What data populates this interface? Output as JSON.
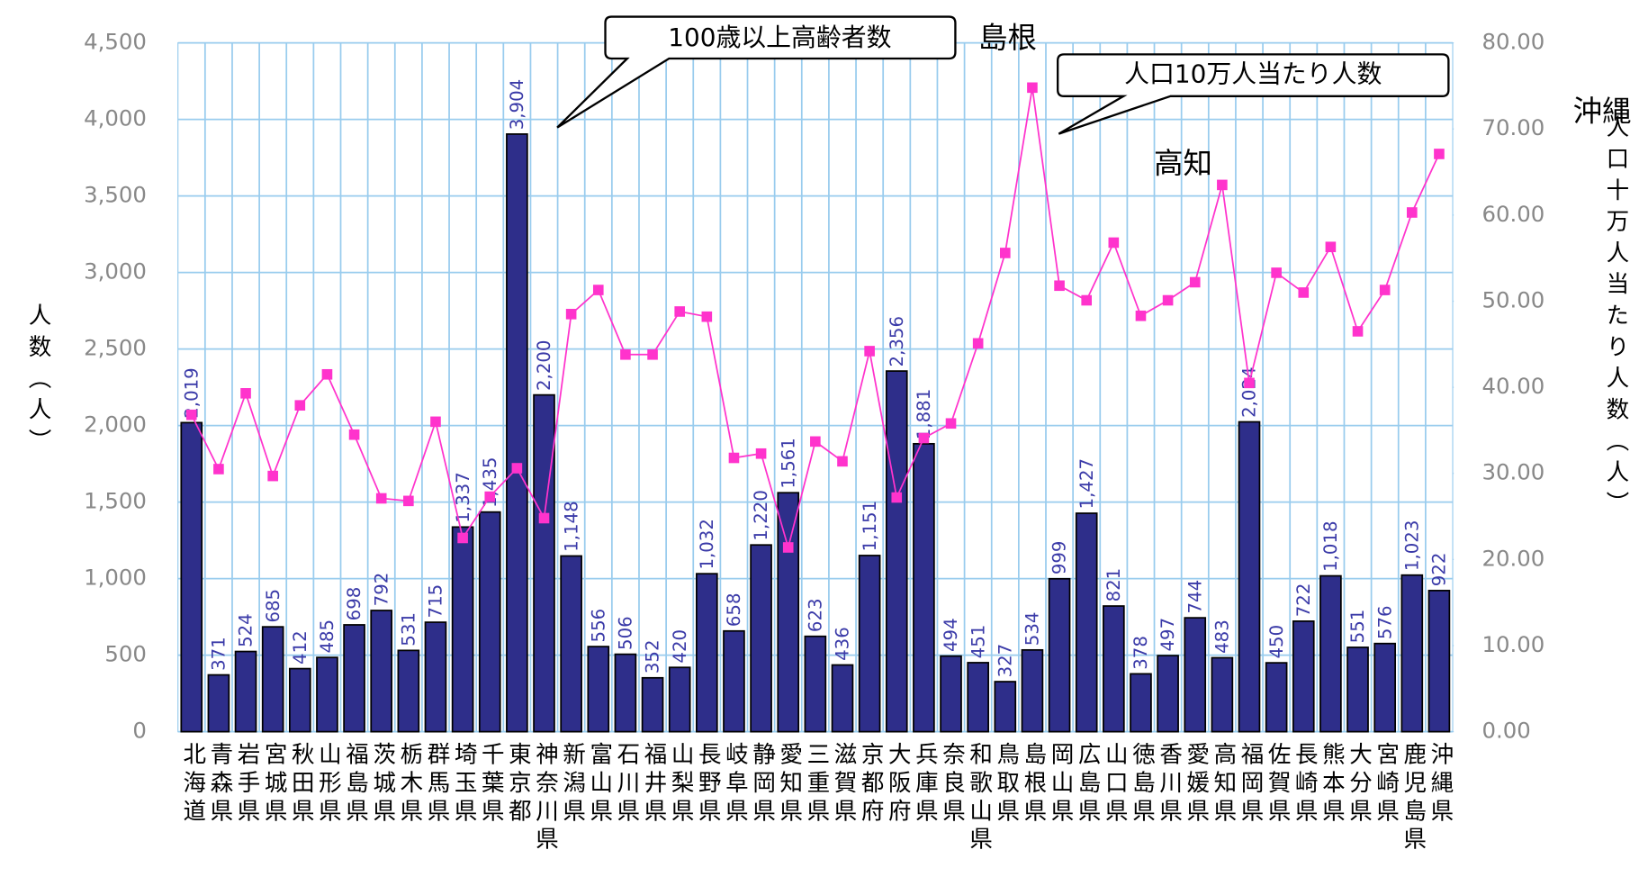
{
  "chart_data": {
    "type": "bar_line",
    "categories": [
      "北海道",
      "青森県",
      "岩手県",
      "宮城県",
      "秋田県",
      "山形県",
      "福島県",
      "茨城県",
      "栃木県",
      "群馬県",
      "埼玉県",
      "千葉県",
      "東京都",
      "神奈川県",
      "新潟県",
      "富山県",
      "石川県",
      "福井県",
      "山梨県",
      "長野県",
      "岐阜県",
      "静岡県",
      "愛知県",
      "三重県",
      "滋賀県",
      "京都府",
      "大阪府",
      "兵庫県",
      "奈良県",
      "和歌山県",
      "鳥取県",
      "島根県",
      "岡山県",
      "広島県",
      "山口県",
      "徳島県",
      "香川県",
      "愛媛県",
      "高知県",
      "福岡県",
      "佐賀県",
      "長崎県",
      "熊本県",
      "大分県",
      "宮崎県",
      "鹿児島県",
      "沖縄県"
    ],
    "series": [
      {
        "name": "100歳以上高齢者数",
        "color": "#2e2e8a",
        "type": "bar",
        "values": [
          2019,
          371,
          524,
          685,
          412,
          485,
          698,
          792,
          531,
          715,
          1337,
          1435,
          3904,
          2200,
          1148,
          556,
          506,
          352,
          420,
          1032,
          658,
          1220,
          1561,
          623,
          436,
          1151,
          2356,
          1881,
          494,
          451,
          327,
          534,
          999,
          1427,
          821,
          378,
          497,
          744,
          483,
          2024,
          450,
          722,
          1018,
          551,
          576,
          1023,
          922
        ],
        "value_labels": [
          "2,019",
          "371",
          "524",
          "685",
          "412",
          "485",
          "698",
          "792",
          "531",
          "715",
          "1,337",
          "1,435",
          "3,904",
          "2,200",
          "1,148",
          "556",
          "506",
          "352",
          "420",
          "1,032",
          "658",
          "1,220",
          "1,561",
          "623",
          "436",
          "1,151",
          "2,356",
          "1,881",
          "494",
          "451",
          "327",
          "534",
          "999",
          "1,427",
          "821",
          "378",
          "497",
          "744",
          "483",
          "2,024",
          "450",
          "722",
          "1,018",
          "551",
          "576",
          "1,023",
          "922"
        ]
      },
      {
        "name": "人口10万人当たり人数",
        "color": "#ff33cc",
        "type": "line",
        "axis": "y2",
        "values": [
          36.8,
          30.5,
          39.3,
          29.7,
          37.9,
          41.5,
          34.5,
          27.1,
          26.8,
          36.0,
          22.5,
          27.3,
          30.6,
          24.8,
          48.5,
          51.3,
          43.8,
          43.8,
          48.8,
          48.2,
          31.8,
          32.3,
          21.4,
          33.7,
          31.4,
          44.2,
          27.2,
          34.1,
          35.8,
          45.1,
          55.6,
          74.8,
          51.8,
          50.1,
          56.8,
          48.3,
          50.1,
          52.2,
          63.5,
          40.5,
          53.3,
          51.0,
          56.3,
          46.5,
          51.3,
          60.3,
          67.1
        ]
      }
    ],
    "ylabel": "人数（人）",
    "y2label": "人口十万人当たり人数（人）",
    "ylim": [
      0,
      4500
    ],
    "yticks": [
      0,
      500,
      {
        "value": 1000,
        "label": "1,000"
      },
      {
        "value": 1500,
        "label": "1,500"
      },
      {
        "value": 2000,
        "label": "2,000"
      },
      {
        "value": 2500,
        "label": "2,500"
      },
      {
        "value": 3000,
        "label": "3,000"
      },
      {
        "value": 3500,
        "label": "3,500"
      },
      {
        "value": 4000,
        "label": "4,000"
      },
      {
        "value": 4500,
        "label": "4,500"
      }
    ],
    "y2lim": [
      0,
      80
    ],
    "y2ticks": [
      {
        "value": 0,
        "label": "0.00"
      },
      {
        "value": 10,
        "label": "10.00"
      },
      {
        "value": 20,
        "label": "20.00"
      },
      {
        "value": 30,
        "label": "30.00"
      },
      {
        "value": 40,
        "label": "40.00"
      },
      {
        "value": 50,
        "label": "50.00"
      },
      {
        "value": 60,
        "label": "60.00"
      },
      {
        "value": 70,
        "label": "70.00"
      },
      {
        "value": 80,
        "label": "80.00"
      }
    ],
    "grid": true,
    "annotations": [
      "島根",
      "高知",
      "沖縄"
    ]
  }
}
